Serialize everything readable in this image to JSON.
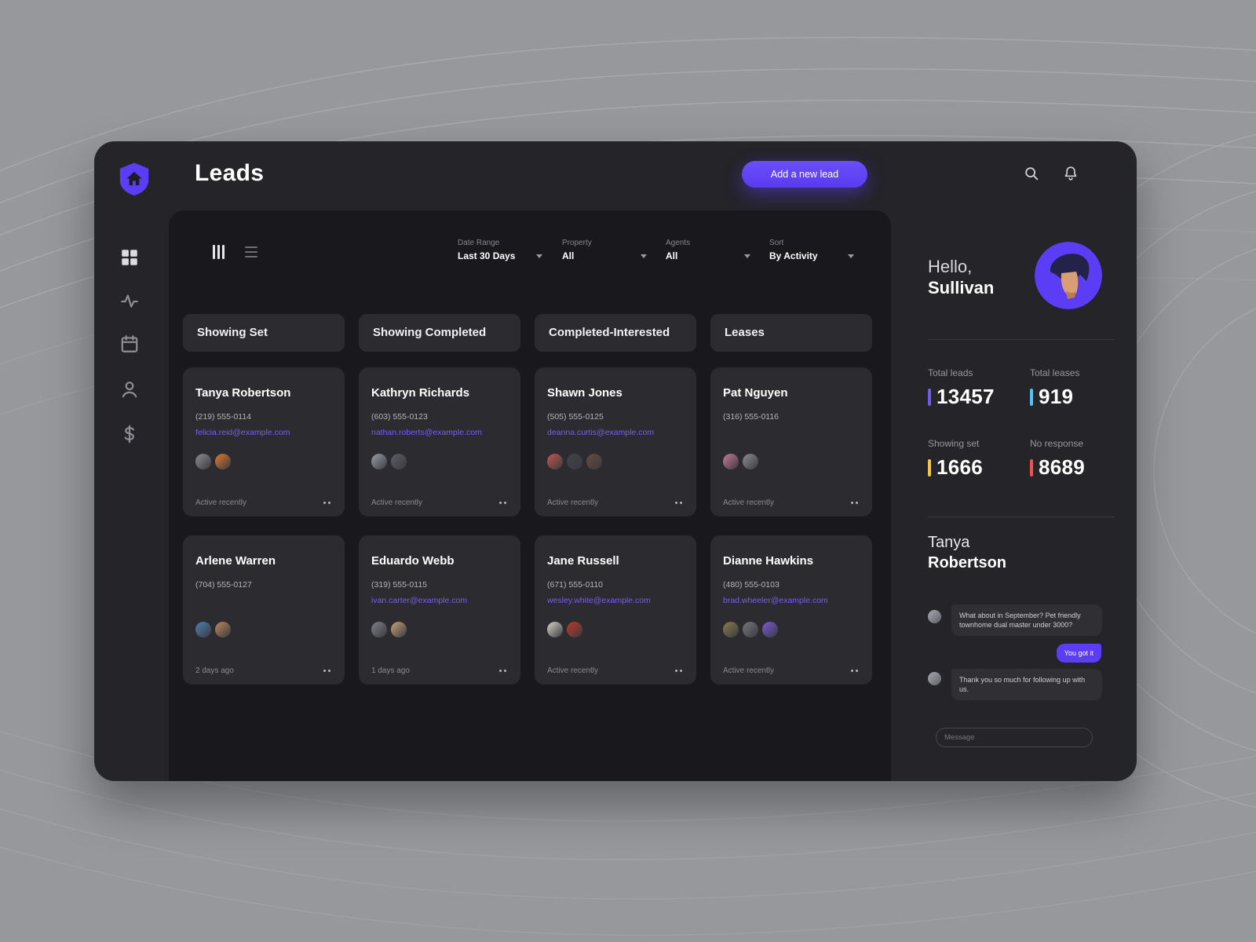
{
  "colors": {
    "accent_purple": "#5b3df5",
    "email_link": "#7b5bff"
  },
  "header": {
    "title": "Leads",
    "add_lead_button": "Add a new lead"
  },
  "sidebar": {
    "items": [
      {
        "icon": "grid-icon"
      },
      {
        "icon": "activity-icon"
      },
      {
        "icon": "calendar-icon"
      },
      {
        "icon": "person-icon"
      },
      {
        "icon": "dollar-icon"
      }
    ]
  },
  "filters": [
    {
      "label": "Date Range",
      "value": "Last 30 Days"
    },
    {
      "label": "Property",
      "value": "All"
    },
    {
      "label": "Agents",
      "value": "All"
    },
    {
      "label": "Sort",
      "value": "By Activity"
    }
  ],
  "board": {
    "columns": [
      {
        "title": "Showing Set",
        "cards": [
          {
            "name": "Tanya Robertson",
            "phone": "(219) 555-0114",
            "email": "felicia.reid@example.com",
            "avatars": [
              "#8d8d94",
              "#e07b2f"
            ],
            "status": "Active recently"
          },
          {
            "name": "Arlene Warren",
            "phone": "(704) 555-0127",
            "email": "",
            "avatars": [
              "#4f7fb5",
              "#b98a5e"
            ],
            "status": "2 days ago"
          }
        ]
      },
      {
        "title": "Showing Completed",
        "cards": [
          {
            "name": "Kathryn Richards",
            "phone": "(603) 555-0123",
            "email": "nathan.roberts@example.com",
            "avatars": [
              "#9aa0a6",
              "#5c5f66"
            ],
            "status": "Active recently"
          },
          {
            "name": "Eduardo Webb",
            "phone": "(319) 555-0115",
            "email": "ivan.carter@example.com",
            "avatars": [
              "#7d8288",
              "#caa27a"
            ],
            "status": "1 days ago"
          }
        ]
      },
      {
        "title": "Completed-Interested",
        "cards": [
          {
            "name": "Shawn Jones",
            "phone": "(505) 555-0125",
            "email": "deanna.curtis@example.com",
            "avatars": [
              "#c4584f",
              "#3e4248",
              "#6b4a3c"
            ],
            "status": "Active recently"
          },
          {
            "name": "Jane Russell",
            "phone": "(671) 555-0110",
            "email": "wesley.white@example.com",
            "avatars": [
              "#d8d3c8",
              "#c0392b"
            ],
            "status": "Active recently"
          }
        ]
      },
      {
        "title": "Leases",
        "cards": [
          {
            "name": "Pat Nguyen",
            "phone": "(316) 555-0116",
            "email": "",
            "avatars": [
              "#c97b9a",
              "#8d8d94"
            ],
            "status": "Active recently"
          },
          {
            "name": "Dianne Hawkins",
            "phone": "(480) 555-0103",
            "email": "brad.wheeler@example.com",
            "avatars": [
              "#8a7d4a",
              "#77777d",
              "#7b5bd6"
            ],
            "status": "Active recently"
          }
        ]
      }
    ]
  },
  "profile": {
    "greeting": "Hello,",
    "name": "Sullivan",
    "stats": [
      {
        "label": "Total leads",
        "value": "13457",
        "color": "#6c5ce7"
      },
      {
        "label": "Total leases",
        "value": "919",
        "color": "#4fc3f7"
      },
      {
        "label": "Showing set",
        "value": "1666",
        "color": "#f4c542"
      },
      {
        "label": "No response",
        "value": "8689",
        "color": "#ef5350"
      }
    ]
  },
  "chat": {
    "contact_first_name": "Tanya",
    "contact_last_name": "Robertson",
    "messages": [
      {
        "direction": "incoming",
        "text": "What about in September? Pet friendly townhome dual master under 3000?"
      },
      {
        "direction": "outgoing",
        "text": "You got it"
      },
      {
        "direction": "incoming",
        "text": "Thank you so much for following up with us."
      }
    ],
    "input_placeholder": "Message"
  }
}
